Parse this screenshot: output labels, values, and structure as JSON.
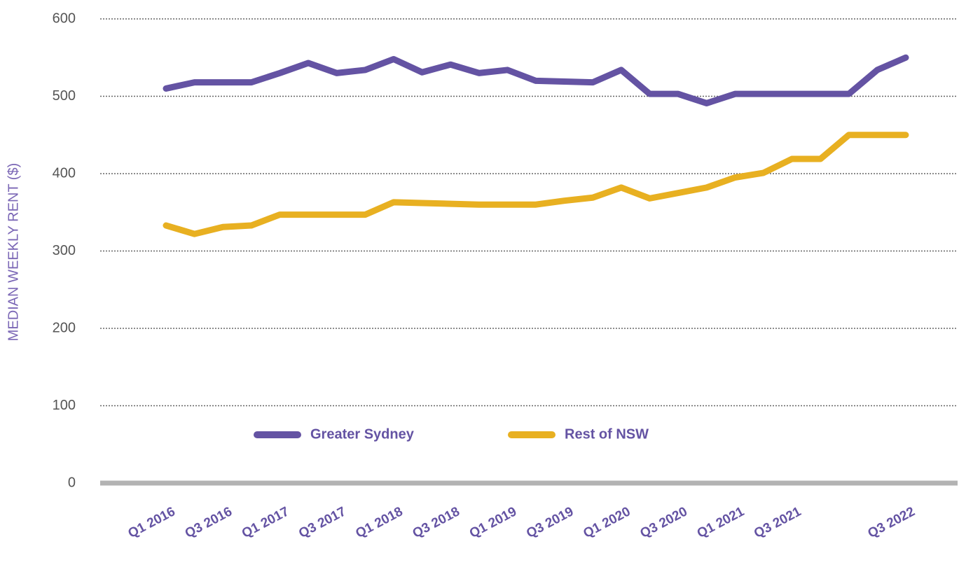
{
  "chart_data": {
    "type": "line",
    "y_label": "MEDIAN WEEKLY RENT ($)",
    "categories": [
      "Q1 2016",
      null,
      "Q3 2016",
      null,
      "Q1 2017",
      null,
      "Q3 2017",
      null,
      "Q1 2018",
      null,
      "Q3 2018",
      null,
      "Q1 2019",
      null,
      "Q3 2019",
      null,
      "Q1 2020",
      null,
      "Q3 2020",
      null,
      "Q1 2021",
      null,
      "Q3 2021",
      null,
      null,
      null,
      "Q3 2022"
    ],
    "series": [
      {
        "name": "Greater Sydney",
        "color": "#6453a3",
        "values": [
          510,
          518,
          518,
          518,
          530,
          543,
          530,
          534,
          548,
          531,
          541,
          530,
          534,
          520,
          519,
          518,
          534,
          503,
          503,
          491,
          503,
          503,
          503,
          503,
          503,
          534,
          550
        ]
      },
      {
        "name": "Rest of NSW",
        "color": "#e8b021",
        "values": [
          333,
          322,
          331,
          333,
          347,
          347,
          347,
          347,
          363,
          362,
          361,
          360,
          360,
          360,
          365,
          369,
          382,
          368,
          375,
          382,
          395,
          401,
          419,
          419,
          450,
          450,
          450
        ]
      }
    ],
    "ylim": [
      0,
      600
    ],
    "yticks": [
      0,
      100,
      200,
      300,
      400,
      500,
      600
    ],
    "grid": true
  }
}
